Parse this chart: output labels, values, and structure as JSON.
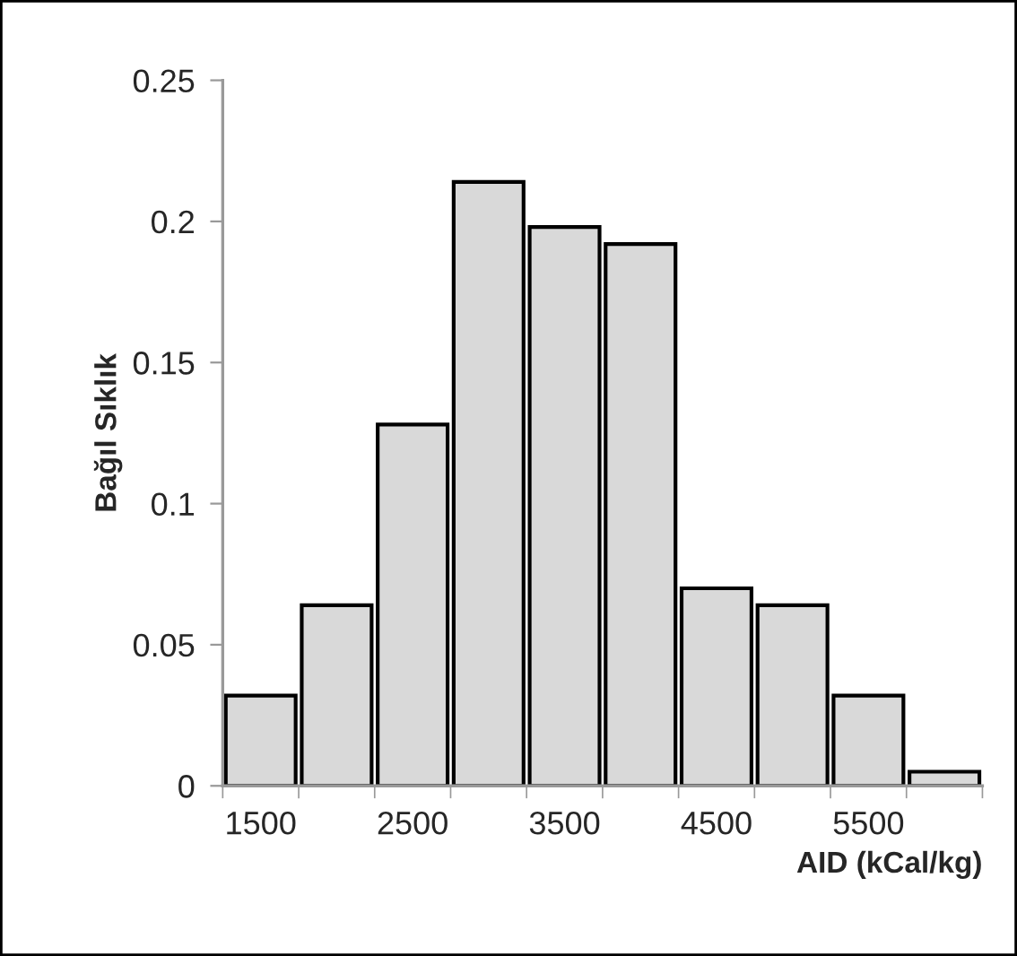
{
  "chart_data": {
    "type": "bar",
    "xlabel": "AID (kCal/kg)",
    "ylabel": "Bağıl Sıklık",
    "categories": [
      "1500",
      null,
      "2500",
      null,
      "3500",
      null,
      "4500",
      null,
      "5500",
      null
    ],
    "values": [
      0.032,
      0.064,
      0.128,
      0.214,
      0.198,
      0.192,
      0.07,
      0.064,
      0.032,
      0.005
    ],
    "color": "#d9d9d9",
    "ylim": [
      0,
      0.25
    ],
    "yticks": [
      0,
      0.05,
      {
        "value": 0.1,
        "label": "0.1"
      },
      0.15,
      {
        "value": 0.2,
        "label": "0.2"
      },
      0.25
    ],
    "grid": false,
    "legend": false
  }
}
